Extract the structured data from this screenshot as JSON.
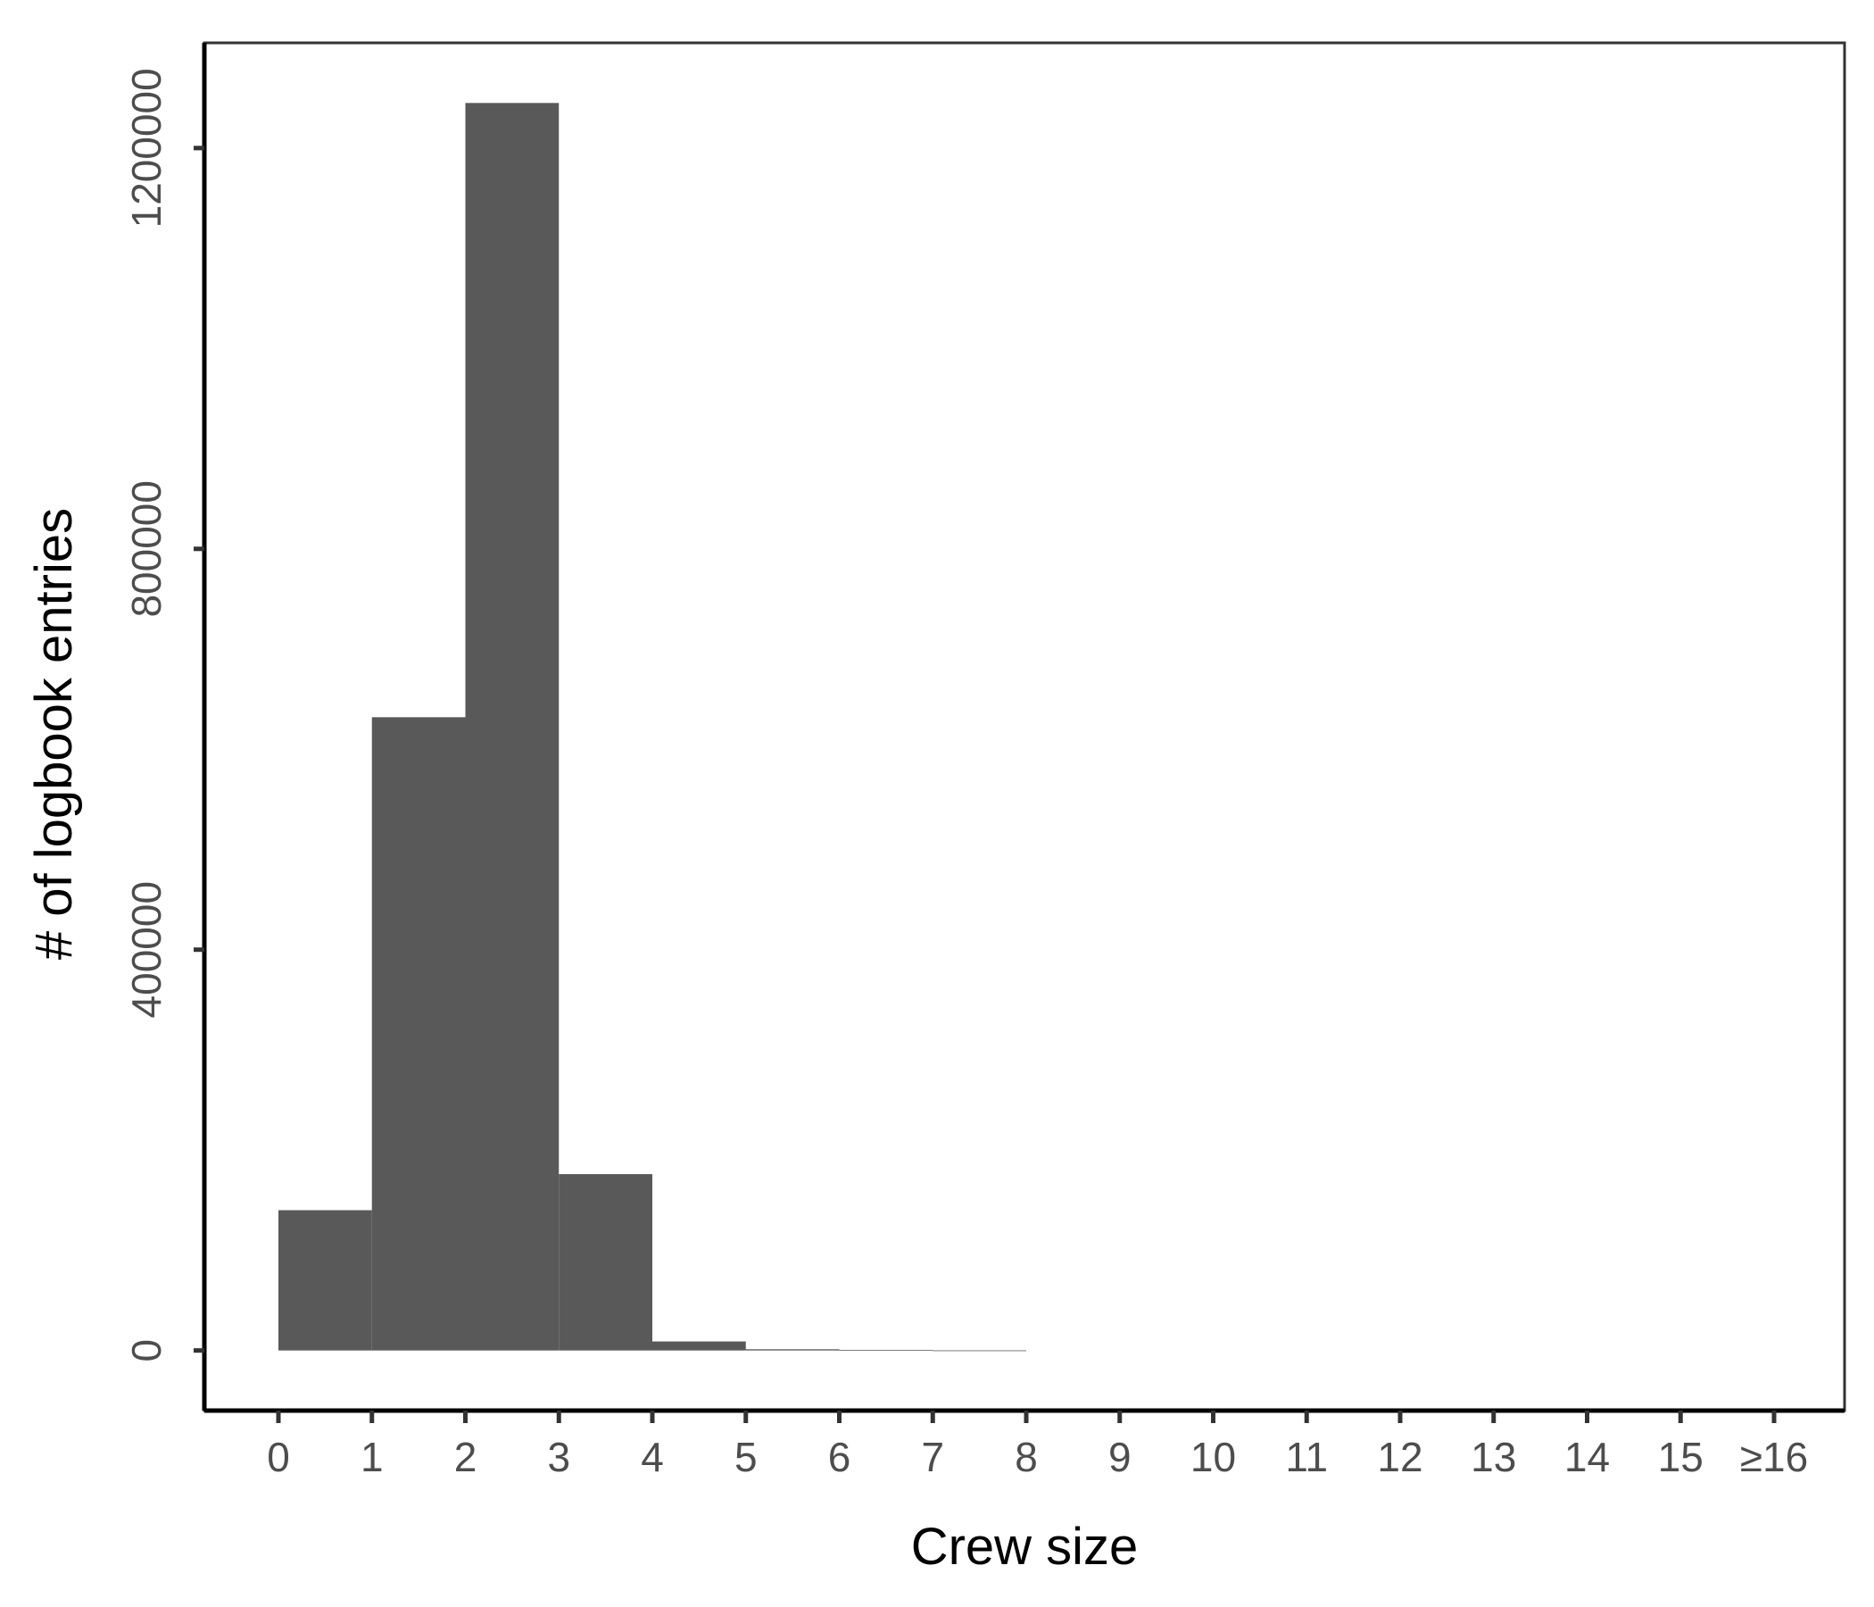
{
  "chart_data": {
    "type": "bar",
    "xlabel": "Crew size",
    "ylabel": "# of logbook entries",
    "categories": [
      "0",
      "1",
      "2",
      "3",
      "4",
      "5",
      "6",
      "7",
      "8",
      "9",
      "10",
      "11",
      "12",
      "13",
      "14",
      "15",
      "≥16"
    ],
    "values": [
      140000,
      632000,
      1245000,
      176000,
      9000,
      1200,
      400,
      100,
      0,
      0,
      0,
      0,
      0,
      0,
      0,
      0,
      0
    ],
    "ylim": [
      -60000,
      1305000
    ],
    "yticks": [
      0,
      400000,
      800000,
      1200000
    ],
    "ytick_labels": [
      "0",
      "400000",
      "800000",
      "1200000"
    ],
    "grid": false,
    "bar_color": "#595959"
  }
}
